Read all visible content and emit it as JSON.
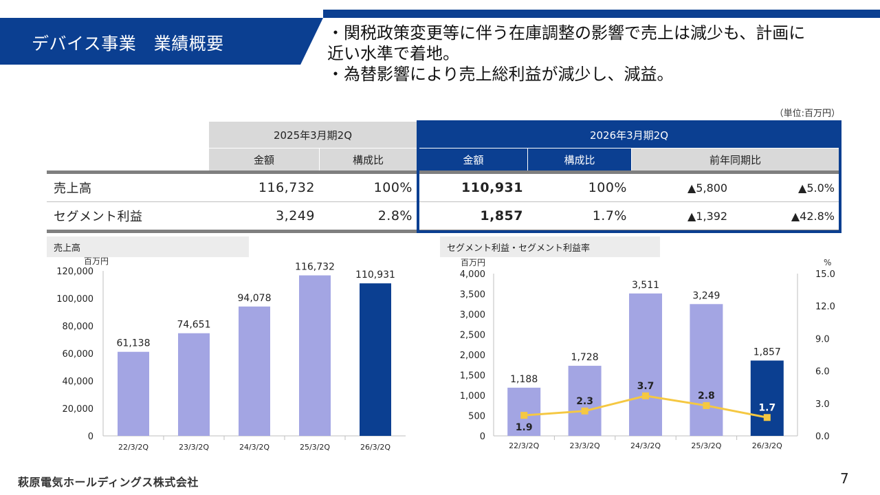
{
  "header": {
    "title": "デバイス事業　業績概要",
    "bullets": [
      "・関税政策変更等に伴う在庫調整の影響で売上は減少も、計画に",
      "近い水準で着地。",
      "・為替影響により売上総利益が減少し、減益。"
    ]
  },
  "unit_note": "（単位:百万円）",
  "table": {
    "period_prev": "2025年3月期2Q",
    "period_curr": "2026年3月期2Q",
    "col_amount": "金額",
    "col_ratio": "構成比",
    "col_yoy": "前年同期比",
    "rows": [
      {
        "label": "売上高",
        "prev_amount": "116,732",
        "prev_ratio": "100%",
        "curr_amount": "110,931",
        "curr_ratio": "100%",
        "yoy_amount": "▲5,800",
        "yoy_pct": "▲5.0%"
      },
      {
        "label": "セグメント利益",
        "prev_amount": "3,249",
        "prev_ratio": "2.8%",
        "curr_amount": "1,857",
        "curr_ratio": "1.7%",
        "yoy_amount": "▲1,392",
        "yoy_pct": "▲42.8%"
      }
    ]
  },
  "colors": {
    "navy": "#0b3f91",
    "lavender": "#a3a5e3",
    "yellow": "#f5c842",
    "gray": "#d9d9d9"
  },
  "chart_data": [
    {
      "type": "bar",
      "title": "売上高",
      "ylabel": "百万円",
      "categories": [
        "22/3/2Q",
        "23/3/2Q",
        "24/3/2Q",
        "25/3/2Q",
        "26/3/2Q"
      ],
      "values": [
        61138,
        74651,
        94078,
        116732,
        110931
      ],
      "value_labels": [
        "61,138",
        "74,651",
        "94,078",
        "116,732",
        "110,931"
      ],
      "ylim": [
        0,
        120000
      ],
      "yticks": [
        0,
        20000,
        40000,
        60000,
        80000,
        100000,
        120000
      ],
      "ytick_labels": [
        "0",
        "20,000",
        "40,000",
        "60,000",
        "80,000",
        "100,000",
        "120,000"
      ],
      "highlight_last": true
    },
    {
      "type": "bar+line",
      "title": "セグメント利益・セグメント利益率",
      "ylabel": "百万円",
      "y2label": "%",
      "categories": [
        "22/3/2Q",
        "23/3/2Q",
        "24/3/2Q",
        "25/3/2Q",
        "26/3/2Q"
      ],
      "series": [
        {
          "name": "セグメント利益",
          "kind": "bar",
          "values": [
            1188,
            1728,
            3511,
            3249,
            1857
          ],
          "value_labels": [
            "1,188",
            "1,728",
            "3,511",
            "3,249",
            "1,857"
          ]
        },
        {
          "name": "セグメント利益率",
          "kind": "line",
          "axis": "right",
          "values": [
            1.9,
            2.3,
            3.7,
            2.8,
            1.7
          ],
          "value_labels": [
            "1.9",
            "2.3",
            "3.7",
            "2.8",
            "1.7"
          ]
        }
      ],
      "ylim": [
        0,
        4000
      ],
      "yticks": [
        0,
        500,
        1000,
        1500,
        2000,
        2500,
        3000,
        3500,
        4000
      ],
      "ytick_labels": [
        "0",
        "500",
        "1,000",
        "1,500",
        "2,000",
        "2,500",
        "3,000",
        "3,500",
        "4,000"
      ],
      "y2lim": [
        0,
        15
      ],
      "y2ticks": [
        0,
        3,
        6,
        9,
        12,
        15
      ],
      "y2tick_labels": [
        "0.0",
        "3.0",
        "6.0",
        "9.0",
        "12.0",
        "15.0"
      ],
      "highlight_last": true
    }
  ],
  "footer": {
    "company": "萩原電気ホールディングス株式会社",
    "page": "7"
  }
}
